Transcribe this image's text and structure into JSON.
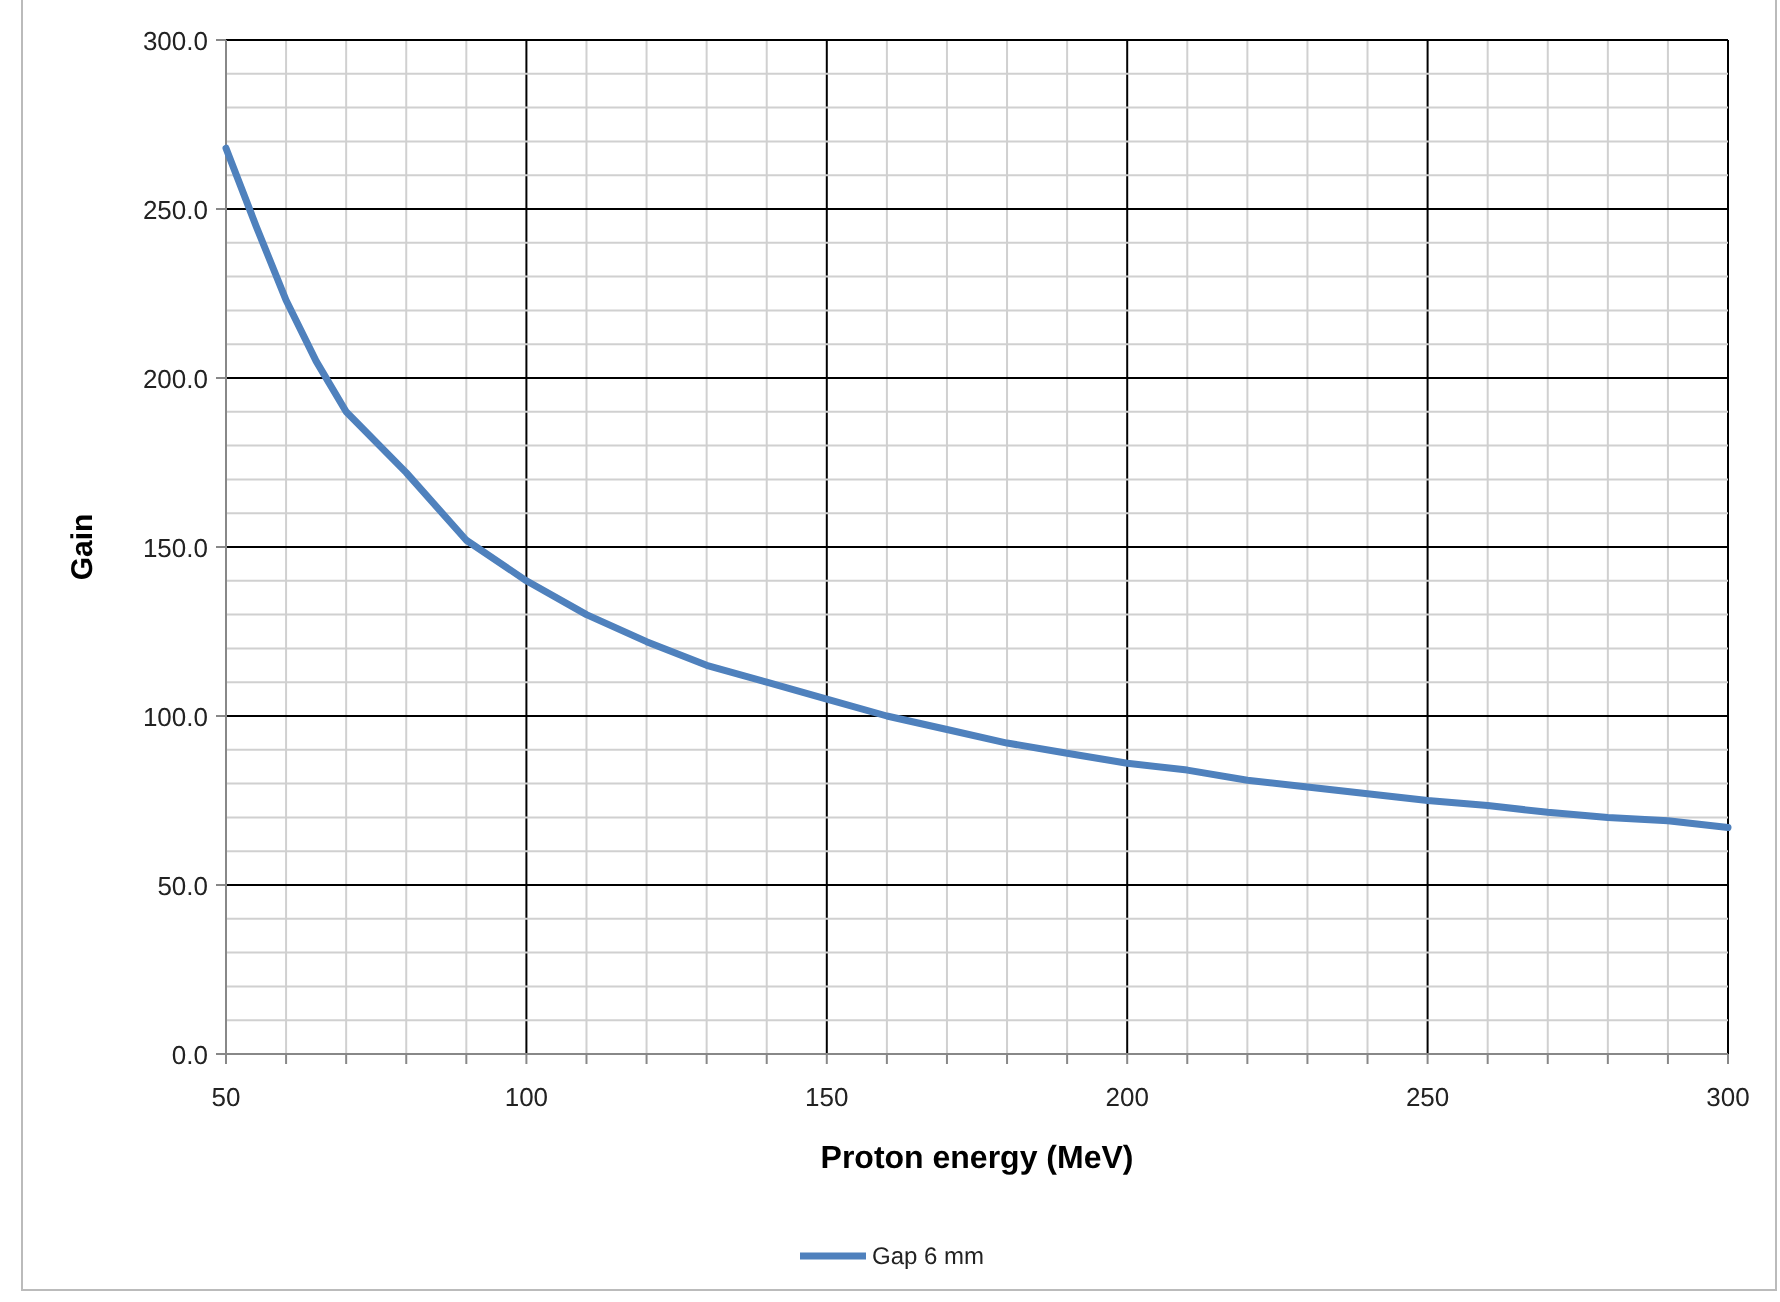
{
  "chart_data": {
    "type": "line",
    "xlabel": "Proton energy (MeV)",
    "ylabel": "Gain",
    "xlim": [
      50,
      300
    ],
    "xticks": [
      50,
      {
        "value": 60,
        "label": null
      },
      {
        "value": 70,
        "label": null
      },
      {
        "value": 80,
        "label": null
      },
      {
        "value": 90,
        "label": null
      },
      100,
      {
        "value": 110,
        "label": null
      },
      {
        "value": 120,
        "label": null
      },
      {
        "value": 130,
        "label": null
      },
      {
        "value": 140,
        "label": null
      },
      150,
      {
        "value": 160,
        "label": null
      },
      {
        "value": 170,
        "label": null
      },
      {
        "value": 180,
        "label": null
      },
      {
        "value": 190,
        "label": null
      },
      200,
      {
        "value": 210,
        "label": null
      },
      {
        "value": 220,
        "label": null
      },
      {
        "value": 230,
        "label": null
      },
      {
        "value": 240,
        "label": null
      },
      250,
      {
        "value": 260,
        "label": null
      },
      {
        "value": 270,
        "label": null
      },
      {
        "value": 280,
        "label": null
      },
      {
        "value": 290,
        "label": null
      },
      300
    ],
    "ylim": [
      0,
      300
    ],
    "yticks": [
      {
        "value": 0,
        "label": "0.0"
      },
      {
        "value": 10,
        "label": null
      },
      {
        "value": 20,
        "label": null
      },
      {
        "value": 30,
        "label": null
      },
      {
        "value": 40,
        "label": null
      },
      {
        "value": 50,
        "label": "50.0"
      },
      {
        "value": 60,
        "label": null
      },
      {
        "value": 70,
        "label": null
      },
      {
        "value": 80,
        "label": null
      },
      {
        "value": 90,
        "label": null
      },
      {
        "value": 100,
        "label": "100.0"
      },
      {
        "value": 110,
        "label": null
      },
      {
        "value": 120,
        "label": null
      },
      {
        "value": 130,
        "label": null
      },
      {
        "value": 140,
        "label": null
      },
      {
        "value": 150,
        "label": "150.0"
      },
      {
        "value": 160,
        "label": null
      },
      {
        "value": 170,
        "label": null
      },
      {
        "value": 180,
        "label": null
      },
      {
        "value": 190,
        "label": null
      },
      {
        "value": 200,
        "label": "200.0"
      },
      {
        "value": 210,
        "label": null
      },
      {
        "value": 220,
        "label": null
      },
      {
        "value": 230,
        "label": null
      },
      {
        "value": 240,
        "label": null
      },
      {
        "value": 250,
        "label": "250.0"
      },
      {
        "value": 260,
        "label": null
      },
      {
        "value": 270,
        "label": null
      },
      {
        "value": 280,
        "label": null
      },
      {
        "value": 290,
        "label": null
      },
      {
        "value": 300,
        "label": "300.0"
      }
    ],
    "grid": true,
    "legend": "bottom",
    "marker": "none",
    "line_style": "solid",
    "x": [
      50,
      55,
      60,
      65,
      70,
      80,
      90,
      100,
      110,
      120,
      130,
      140,
      150,
      160,
      170,
      180,
      190,
      200,
      210,
      220,
      230,
      240,
      250,
      260,
      270,
      280,
      290,
      300
    ],
    "series": [
      {
        "name": "Gap 6 mm",
        "color": "#4f81bd",
        "values": [
          268,
          245,
          223,
          205,
          190,
          172,
          152,
          140,
          130,
          122,
          115,
          110,
          105,
          100,
          96,
          92,
          89,
          86,
          84,
          81,
          79,
          77,
          75,
          73.5,
          71.5,
          70,
          69,
          67
        ]
      }
    ]
  }
}
